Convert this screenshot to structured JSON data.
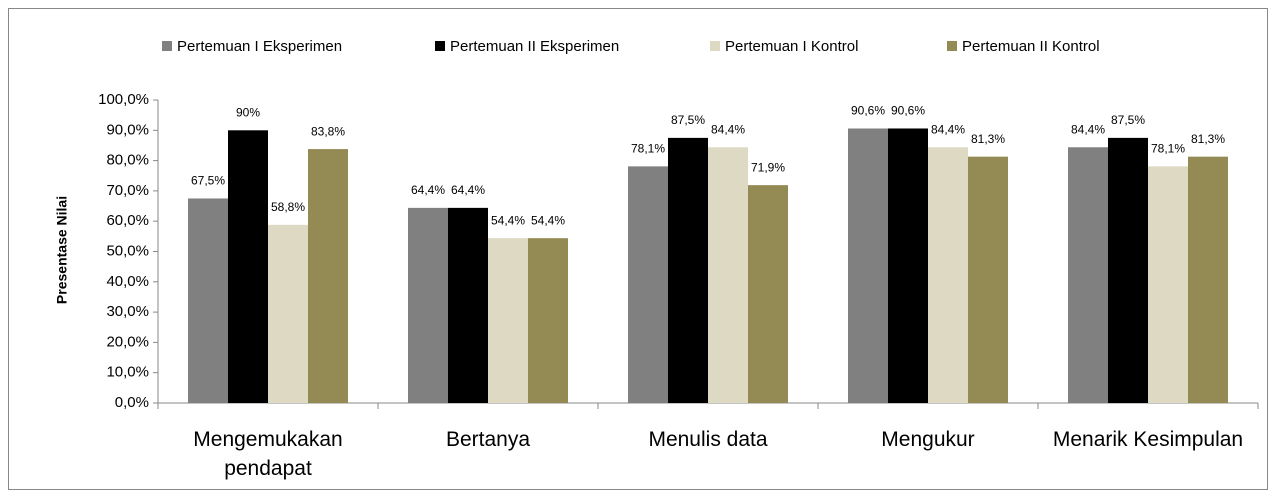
{
  "chart_data": {
    "type": "bar",
    "y_label": "Presentase Nilai",
    "categories": [
      "Mengemukakan pendapat",
      "Bertanya",
      "Menulis data",
      "Mengukur",
      "Menarik Kesimpulan"
    ],
    "series": [
      {
        "name": "Pertemuan I Eksperimen",
        "color": "#808080",
        "values": [
          67.5,
          64.4,
          78.1,
          90.6,
          84.4
        ],
        "value_labels": [
          "67,5%",
          "64,4%",
          "78,1%",
          "90,6%",
          "84,4%"
        ]
      },
      {
        "name": "Pertemuan II Eksperimen",
        "color": "#000000",
        "values": [
          90,
          64.4,
          87.5,
          90.6,
          87.5
        ],
        "value_labels": [
          "90%",
          "64,4%",
          "87,5%",
          "90,6%",
          "87,5%"
        ]
      },
      {
        "name": "Pertemuan I Kontrol",
        "color": "#ddd9c3",
        "values": [
          58.8,
          54.4,
          84.4,
          84.4,
          78.1
        ],
        "value_labels": [
          "58,8%",
          "54,4%",
          "84,4%",
          "84,4%",
          "78,1%"
        ]
      },
      {
        "name": "Pertemuan II Kontrol",
        "color": "#948a54",
        "values": [
          83.8,
          54.4,
          71.9,
          81.3,
          81.3
        ],
        "value_labels": [
          "83,8%",
          "54,4%",
          "71,9%",
          "81,3%",
          "81,3%"
        ]
      }
    ],
    "ylim": [
      0,
      100
    ],
    "yticks": [
      {
        "value": 0,
        "label": "0,0%"
      },
      {
        "value": 10,
        "label": "10,0%"
      },
      {
        "value": 20,
        "label": "20,0%"
      },
      {
        "value": 30,
        "label": "30,0%"
      },
      {
        "value": 40,
        "label": "40,0%"
      },
      {
        "value": 50,
        "label": "50,0%"
      },
      {
        "value": 60,
        "label": "60,0%"
      },
      {
        "value": 70,
        "label": "70,0%"
      },
      {
        "value": 80,
        "label": "80,0%"
      },
      {
        "value": 90,
        "label": "90,0%"
      },
      {
        "value": 100,
        "label": "100,0%"
      }
    ],
    "legend": "top"
  }
}
